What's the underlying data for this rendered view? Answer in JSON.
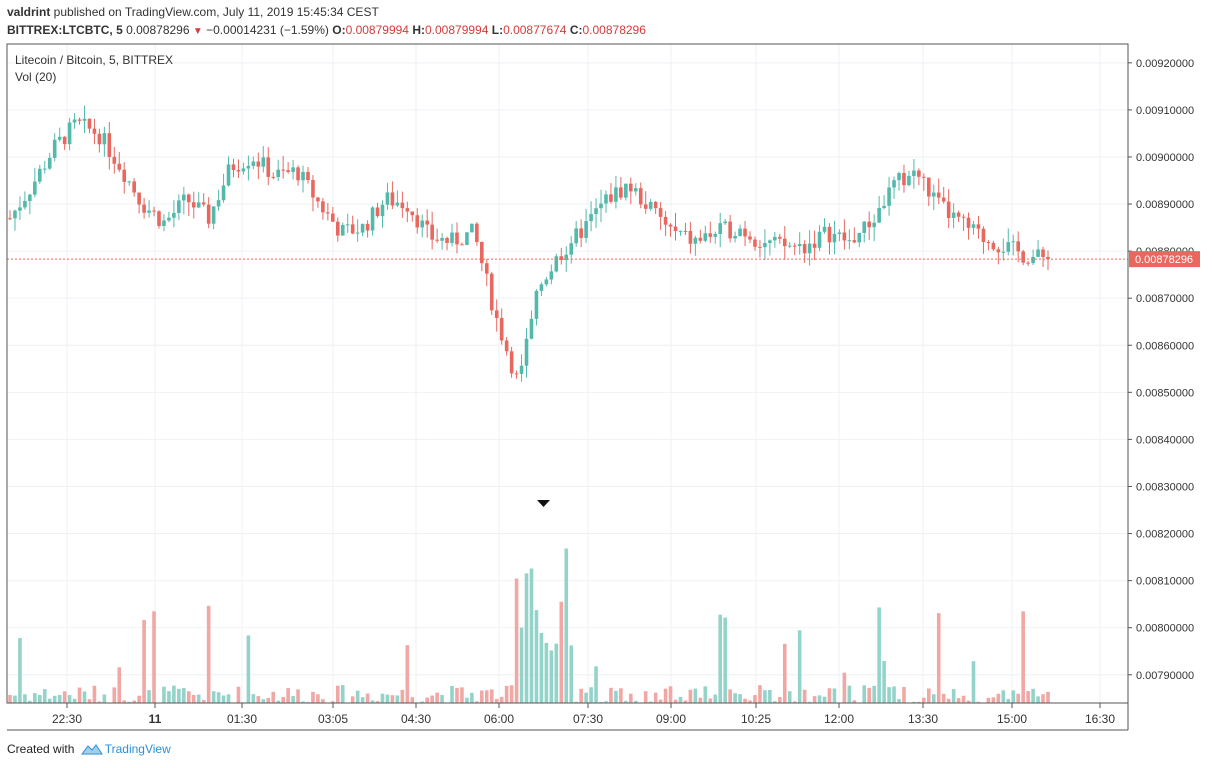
{
  "header": {
    "author": "valdrint",
    "published_text": " published on TradingView.com, July 11, 2019 15:45:34 CEST",
    "symbol": "BITTREX:LTCBTC, 5",
    "last": "0.00878296",
    "change": "−0.00014231 (−1.59%)",
    "o_label": "O:",
    "o_value": "0.00879994",
    "h_label": "H:",
    "h_value": "0.00879994",
    "l_label": "L:",
    "l_value": "0.00877674",
    "c_label": "C:",
    "c_value": "0.00878296"
  },
  "pane": {
    "title": "Litecoin / Bitcoin, 5, BITTREX",
    "volume_label": "Vol (20)"
  },
  "price_label": "0.00878296",
  "footer": {
    "created_with": "Created with",
    "brand": "TradingView"
  },
  "colors": {
    "up": "#53b9ab",
    "down": "#e8675f",
    "up_vol": "#93d3ca",
    "down_vol": "#f1a7a3",
    "grid": "#eef2f6",
    "axis": "#555555"
  },
  "chart_data": {
    "type": "candlestick",
    "title": "Litecoin / Bitcoin, 5, BITTREX",
    "interval": "5 min",
    "x_ticks": [
      "22:30",
      "11",
      "01:30",
      "03:05",
      "04:30",
      "06:00",
      "07:30",
      "09:00",
      "10:25",
      "12:00",
      "13:30",
      "15:00",
      "16:30"
    ],
    "y_ticks": [
      "0.00920000",
      "0.00910000",
      "0.00900000",
      "0.00890000",
      "0.00880000",
      "0.00870000",
      "0.00860000",
      "0.00850000",
      "0.00840000",
      "0.00830000",
      "0.00820000",
      "0.00810000",
      "0.00800000",
      "0.00790000"
    ],
    "ylim": [
      0.00784,
      0.00924
    ],
    "last_price": 0.00878296,
    "volume_indicator": "Vol (20)",
    "grid": true,
    "marker": "down-arrow above volume spike near 07:05",
    "series": [
      {
        "name": "price_path",
        "approx_closes": [
          0.00887,
          0.00894,
          0.00902,
          0.00907,
          0.00905,
          0.00898,
          0.0089,
          0.00886,
          0.00891,
          0.00887,
          0.00898,
          0.009,
          0.00896,
          0.00897,
          0.0089,
          0.00884,
          0.00885,
          0.00891,
          0.0089,
          0.00883,
          0.00882,
          0.00884,
          0.00866,
          0.00852,
          0.00873,
          0.0088,
          0.00885,
          0.00891,
          0.00894,
          0.00889,
          0.00884,
          0.00882,
          0.00884,
          0.00885,
          0.00882,
          0.00881,
          0.00881,
          0.00884,
          0.00882,
          0.00886,
          0.00894,
          0.00897,
          0.0089,
          0.00886,
          0.00883,
          0.00881,
          0.00879,
          0.00878296
        ]
      }
    ]
  }
}
